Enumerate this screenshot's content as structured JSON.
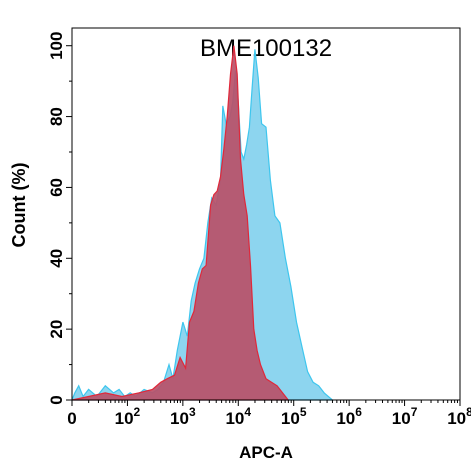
{
  "chart_data": {
    "type": "area",
    "title": "BME100132",
    "xlabel": "APC-A",
    "ylabel": "Count  (%)",
    "xscale": "log",
    "ylim": [
      0,
      105
    ],
    "yticks": [
      0,
      20,
      40,
      60,
      80,
      100
    ],
    "xticks": [
      {
        "base": "0",
        "exp": ""
      },
      {
        "base": "10",
        "exp": "2"
      },
      {
        "base": "10",
        "exp": "3"
      },
      {
        "base": "10",
        "exp": "4"
      },
      {
        "base": "10",
        "exp": "5"
      },
      {
        "base": "10",
        "exp": "6"
      },
      {
        "base": "10",
        "exp": "7"
      },
      {
        "base": "10",
        "exp": "8"
      }
    ],
    "series": [
      {
        "color": "#3ec6ee",
        "fill": "#87d3ee",
        "points": [
          [
            0,
            0
          ],
          [
            0.05,
            2
          ],
          [
            0.12,
            4
          ],
          [
            0.2,
            1
          ],
          [
            0.3,
            3
          ],
          [
            0.45,
            1
          ],
          [
            0.6,
            4
          ],
          [
            0.75,
            2
          ],
          [
            0.85,
            3
          ],
          [
            0.95,
            1
          ],
          [
            1.05,
            2
          ],
          [
            1.15,
            1
          ],
          [
            1.3,
            3
          ],
          [
            1.45,
            2
          ],
          [
            1.55,
            3
          ],
          [
            1.65,
            5
          ],
          [
            1.75,
            10
          ],
          [
            1.82,
            6
          ],
          [
            1.9,
            14
          ],
          [
            2.0,
            22
          ],
          [
            2.08,
            18
          ],
          [
            2.15,
            28
          ],
          [
            2.22,
            33
          ],
          [
            2.3,
            37
          ],
          [
            2.38,
            40
          ],
          [
            2.45,
            50
          ],
          [
            2.52,
            57
          ],
          [
            2.6,
            55
          ],
          [
            2.68,
            62
          ],
          [
            2.72,
            83
          ],
          [
            2.78,
            78
          ],
          [
            2.85,
            80
          ],
          [
            2.9,
            84
          ],
          [
            2.95,
            93
          ],
          [
            3.0,
            84
          ],
          [
            3.05,
            70
          ],
          [
            3.1,
            68
          ],
          [
            3.15,
            72
          ],
          [
            3.2,
            77
          ],
          [
            3.25,
            88
          ],
          [
            3.3,
            99
          ],
          [
            3.36,
            91
          ],
          [
            3.42,
            78
          ],
          [
            3.5,
            77
          ],
          [
            3.58,
            62
          ],
          [
            3.66,
            52
          ],
          [
            3.75,
            50
          ],
          [
            3.85,
            40
          ],
          [
            3.95,
            32
          ],
          [
            4.05,
            22
          ],
          [
            4.15,
            15
          ],
          [
            4.25,
            8
          ],
          [
            4.35,
            5
          ],
          [
            4.45,
            4
          ],
          [
            4.55,
            2
          ],
          [
            4.7,
            0
          ]
        ]
      },
      {
        "color": "#e0283a",
        "fill": "#b85068",
        "points": [
          [
            0,
            0
          ],
          [
            0.3,
            1
          ],
          [
            0.6,
            2
          ],
          [
            0.9,
            1
          ],
          [
            1.2,
            2
          ],
          [
            1.45,
            3
          ],
          [
            1.6,
            5
          ],
          [
            1.72,
            6
          ],
          [
            1.85,
            7
          ],
          [
            1.95,
            12
          ],
          [
            2.05,
            9
          ],
          [
            2.12,
            22
          ],
          [
            2.2,
            25
          ],
          [
            2.28,
            33
          ],
          [
            2.35,
            37
          ],
          [
            2.42,
            38
          ],
          [
            2.5,
            55
          ],
          [
            2.56,
            58
          ],
          [
            2.62,
            59
          ],
          [
            2.68,
            63
          ],
          [
            2.74,
            71
          ],
          [
            2.8,
            80
          ],
          [
            2.86,
            92
          ],
          [
            2.92,
            100
          ],
          [
            2.98,
            92
          ],
          [
            3.04,
            68
          ],
          [
            3.1,
            58
          ],
          [
            3.16,
            52
          ],
          [
            3.22,
            38
          ],
          [
            3.28,
            20
          ],
          [
            3.34,
            14
          ],
          [
            3.4,
            10
          ],
          [
            3.5,
            6
          ],
          [
            3.6,
            5
          ],
          [
            3.7,
            4
          ],
          [
            3.8,
            2
          ],
          [
            3.9,
            0
          ]
        ]
      }
    ]
  }
}
